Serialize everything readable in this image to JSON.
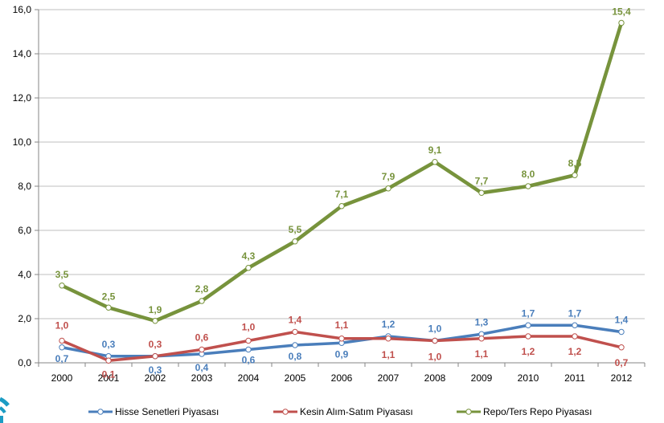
{
  "chart_data": {
    "type": "line",
    "title": "",
    "xlabel": "",
    "ylabel": "",
    "ylim": [
      0,
      16
    ],
    "y_ticks": [
      "0,0",
      "2,0",
      "4,0",
      "6,0",
      "8,0",
      "10,0",
      "12,0",
      "14,0",
      "16,0"
    ],
    "categories": [
      "2000",
      "2001",
      "2002",
      "2003",
      "2004",
      "2005",
      "2006",
      "2007",
      "2008",
      "2009",
      "2010",
      "2011",
      "2012"
    ],
    "grid": true,
    "legend_position": "bottom",
    "series": [
      {
        "name": "Hisse Senetleri Piyasası",
        "color": "#4A7EBB",
        "values": [
          0.7,
          0.3,
          0.3,
          0.4,
          0.6,
          0.8,
          0.9,
          1.2,
          1.0,
          1.3,
          1.7,
          1.7,
          1.4
        ],
        "labels": [
          "0,7",
          "0,3",
          "0,3",
          "0,4",
          "0,6",
          "0,8",
          "0,9",
          "1,2",
          "1,0",
          "1,3",
          "1,7",
          "1,7",
          "1,4"
        ]
      },
      {
        "name": "Kesin Alım-Satım Piyasası",
        "color": "#C0504D",
        "values": [
          1.0,
          0.1,
          0.3,
          0.6,
          1.0,
          1.4,
          1.1,
          1.1,
          1.0,
          1.1,
          1.2,
          1.2,
          0.7
        ],
        "labels": [
          "1,0",
          "0,1",
          "0,3",
          "0,6",
          "1,0",
          "1,4",
          "1,1",
          "1,1",
          "1,0",
          "1,1",
          "1,2",
          "1,2",
          "0,7"
        ]
      },
      {
        "name": "Repo/Ters Repo Piyasası",
        "color": "#77933C",
        "values": [
          3.5,
          2.5,
          1.9,
          2.8,
          4.3,
          5.5,
          7.1,
          7.9,
          9.1,
          7.7,
          8.0,
          8.5,
          15.4
        ],
        "labels": [
          "3,5",
          "2,5",
          "1,9",
          "2,8",
          "4,3",
          "5,5",
          "7,1",
          "7,9",
          "9,1",
          "7,7",
          "8,0",
          "8,5",
          "15,4"
        ]
      }
    ]
  },
  "logo": {
    "color": "#1B9CC4"
  }
}
